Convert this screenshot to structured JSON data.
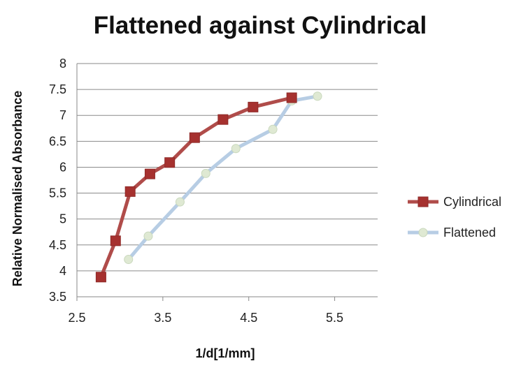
{
  "chart_data": {
    "type": "line",
    "title": "Flattened against Cylindrical",
    "xlabel": "1/d[1/mm]",
    "ylabel": "Relative Normalised Absorbance",
    "xlim": [
      2.5,
      6.0
    ],
    "ylim": [
      3.5,
      8
    ],
    "xticks": [
      2.5,
      3.5,
      4.5,
      5.5
    ],
    "xtick_labels": [
      "2.5",
      "3.5",
      "4.5",
      "5.5"
    ],
    "yticks": [
      3.5,
      4,
      4.5,
      5,
      5.5,
      6,
      6.5,
      7,
      7.5,
      8
    ],
    "ytick_labels": [
      "3.5",
      "4",
      "4.5",
      "5",
      "5.5",
      "6",
      "6.5",
      "7",
      "7.5",
      "8"
    ],
    "grid": "horizontal",
    "legend_position": "right",
    "series": [
      {
        "name": "Cylindrical",
        "color": "#b04c4a",
        "marker": "square",
        "x": [
          2.78,
          2.95,
          3.12,
          3.35,
          3.58,
          3.87,
          4.2,
          4.55,
          5.0
        ],
        "y": [
          3.88,
          4.58,
          5.53,
          5.87,
          6.09,
          6.57,
          6.92,
          7.16,
          7.34
        ]
      },
      {
        "name": "Flattened",
        "color": "#b7cde4",
        "marker": "circle",
        "x": [
          3.1,
          3.33,
          3.7,
          4.0,
          4.35,
          4.78,
          5.0,
          5.3
        ],
        "y": [
          4.22,
          4.67,
          5.33,
          5.88,
          6.36,
          6.73,
          7.28,
          7.37
        ]
      }
    ]
  }
}
